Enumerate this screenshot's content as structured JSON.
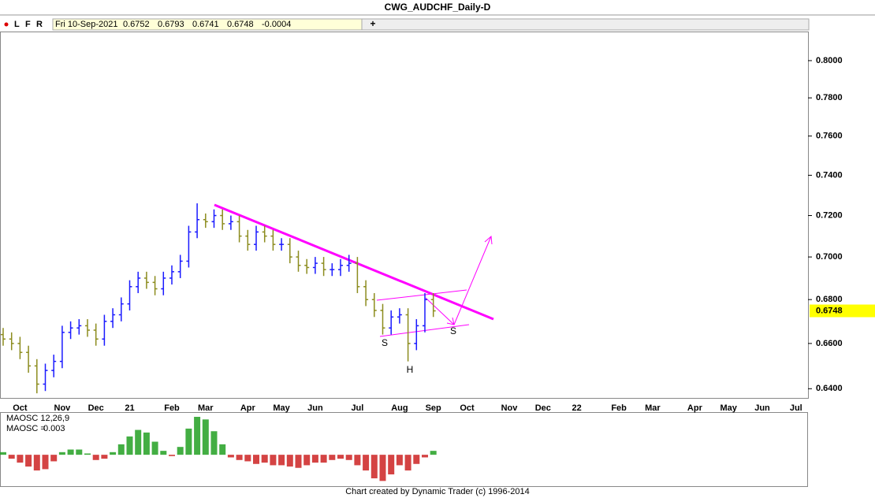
{
  "chart_data": {
    "type": "ohlc",
    "title": "CWG_AUDCHF_Daily-D",
    "toolbar": {
      "buttons": [
        "L",
        "F",
        "R"
      ],
      "date": "Fri 10-Sep-2021",
      "open": 0.6752,
      "high": 0.6793,
      "low": 0.6741,
      "close": 0.6748,
      "change": -0.0004
    },
    "categories": [
      null,
      null,
      "Oct",
      null,
      null,
      null,
      null,
      "Nov",
      null,
      null,
      null,
      "Dec",
      null,
      null,
      null,
      "21",
      null,
      null,
      null,
      null,
      "Feb",
      null,
      null,
      null,
      "Mar",
      null,
      null,
      null,
      null,
      "Apr",
      null,
      null,
      null,
      "May",
      null,
      null,
      null,
      "Jun",
      null,
      null,
      null,
      null,
      "Jul",
      null,
      null,
      null,
      null,
      "Aug",
      null,
      null,
      null,
      "Sep",
      null,
      null,
      null,
      "Oct",
      null,
      null,
      null,
      null,
      "Nov",
      null,
      null,
      null,
      "Dec",
      null,
      null,
      null,
      "22",
      null,
      null,
      null,
      null,
      "Feb",
      null,
      null,
      null,
      "Mar",
      null,
      null,
      null,
      null,
      "Apr",
      null,
      null,
      null,
      "May",
      null,
      null,
      null,
      "Jun",
      null,
      null,
      null,
      "Jul",
      null
    ],
    "open": [
      0.664,
      0.662,
      0.66,
      0.656,
      0.65,
      0.642,
      0.648,
      0.652,
      0.665,
      0.667,
      0.668,
      0.666,
      0.662,
      0.67,
      0.673,
      0.678,
      0.686,
      0.69,
      0.688,
      0.685,
      0.69,
      0.693,
      0.698,
      0.712,
      0.718,
      0.717,
      0.72,
      0.716,
      0.717,
      0.71,
      0.706,
      0.712,
      0.71,
      0.706,
      0.706,
      0.7,
      0.696,
      0.695,
      0.697,
      0.694,
      0.694,
      0.696,
      0.697,
      0.686,
      0.68,
      0.675,
      0.667,
      0.672,
      0.673,
      0.66,
      0.668,
      0.68,
      null,
      null,
      null,
      null,
      null,
      null,
      null,
      null,
      null,
      null,
      null,
      null,
      null,
      null,
      null,
      null,
      null,
      null,
      null,
      null,
      null,
      null,
      null,
      null,
      null,
      null,
      null,
      null,
      null,
      null,
      null,
      null,
      null,
      null,
      null,
      null,
      null,
      null,
      null,
      null,
      null,
      null,
      null,
      null
    ],
    "high": [
      0.667,
      0.665,
      0.663,
      0.659,
      0.653,
      0.651,
      0.655,
      0.668,
      0.67,
      0.671,
      0.671,
      0.669,
      0.673,
      0.676,
      0.681,
      0.689,
      0.693,
      0.693,
      0.691,
      0.693,
      0.696,
      0.701,
      0.715,
      0.726,
      0.721,
      0.723,
      0.723,
      0.72,
      0.72,
      0.713,
      0.715,
      0.715,
      0.713,
      0.709,
      0.709,
      0.703,
      0.699,
      0.7,
      0.7,
      0.697,
      0.699,
      0.701,
      0.7,
      0.689,
      0.683,
      0.678,
      0.675,
      0.676,
      0.676,
      0.671,
      0.683,
      0.683,
      null,
      null,
      null,
      null,
      null,
      null,
      null,
      null,
      null,
      null,
      null,
      null,
      null,
      null,
      null,
      null,
      null,
      null,
      null,
      null,
      null,
      null,
      null,
      null,
      null,
      null,
      null,
      null,
      null,
      null,
      null,
      null,
      null,
      null,
      null,
      null,
      null,
      null,
      null,
      null,
      null,
      null,
      null,
      null
    ],
    "low": [
      0.659,
      0.657,
      0.653,
      0.647,
      0.638,
      0.639,
      0.645,
      0.649,
      0.662,
      0.664,
      0.663,
      0.659,
      0.659,
      0.667,
      0.67,
      0.675,
      0.683,
      0.685,
      0.682,
      0.682,
      0.687,
      0.69,
      0.695,
      0.709,
      0.714,
      0.714,
      0.713,
      0.713,
      0.707,
      0.703,
      0.703,
      0.707,
      0.703,
      0.703,
      0.697,
      0.693,
      0.692,
      0.692,
      0.691,
      0.691,
      0.691,
      0.693,
      0.683,
      0.677,
      0.672,
      0.664,
      0.664,
      0.669,
      0.652,
      0.657,
      0.665,
      0.672,
      null,
      null,
      null,
      null,
      null,
      null,
      null,
      null,
      null,
      null,
      null,
      null,
      null,
      null,
      null,
      null,
      null,
      null,
      null,
      null,
      null,
      null,
      null,
      null,
      null,
      null,
      null,
      null,
      null,
      null,
      null,
      null,
      null,
      null,
      null,
      null,
      null,
      null,
      null,
      null,
      null,
      null,
      null,
      null
    ],
    "close": [
      0.662,
      0.66,
      0.656,
      0.65,
      0.642,
      0.648,
      0.652,
      0.665,
      0.667,
      0.668,
      0.666,
      0.662,
      0.67,
      0.673,
      0.678,
      0.686,
      0.69,
      0.688,
      0.685,
      0.69,
      0.693,
      0.698,
      0.712,
      0.718,
      0.717,
      0.72,
      0.716,
      0.717,
      0.71,
      0.706,
      0.712,
      0.71,
      0.706,
      0.706,
      0.7,
      0.696,
      0.695,
      0.697,
      0.694,
      0.694,
      0.696,
      0.697,
      0.686,
      0.68,
      0.675,
      0.667,
      0.672,
      0.673,
      0.66,
      0.668,
      0.68,
      0.6748,
      null,
      null,
      null,
      null,
      null,
      null,
      null,
      null,
      null,
      null,
      null,
      null,
      null,
      null,
      null,
      null,
      null,
      null,
      null,
      null,
      null,
      null,
      null,
      null,
      null,
      null,
      null,
      null,
      null,
      null,
      null,
      null,
      null,
      null,
      null,
      null,
      null,
      null,
      null,
      null,
      null,
      null,
      null,
      null
    ],
    "up_color": "#1a1aff",
    "down_color": "#8c8c1e",
    "log_scale": true,
    "ylim": [
      0.636,
      0.816
    ],
    "yticks": [
      {
        "value": 0.64,
        "label": "0.6400"
      },
      {
        "value": 0.66,
        "label": "0.6600"
      },
      {
        "value": 0.68,
        "label": "0.6800"
      },
      {
        "value": 0.7,
        "label": "0.7000"
      },
      {
        "value": 0.72,
        "label": "0.7200"
      },
      {
        "value": 0.74,
        "label": "0.7400"
      },
      {
        "value": 0.76,
        "label": "0.7600"
      },
      {
        "value": 0.78,
        "label": "0.7800"
      },
      {
        "value": 0.8,
        "label": "0.8000"
      }
    ],
    "last_price": 0.6748,
    "annotations": [
      "S",
      "H",
      "S"
    ],
    "oscillator": {
      "label": "MAOSC 12,26,9",
      "value_text": "MAOSC =",
      "current": 0.003,
      "ylim": [
        -0.024,
        0.032
      ],
      "up_color": "#22a022",
      "down_color": "#cc2222",
      "values": [
        0.002,
        -0.003,
        -0.006,
        -0.009,
        -0.012,
        -0.011,
        -0.005,
        0.002,
        0.004,
        0.004,
        0.001,
        -0.004,
        -0.003,
        0.002,
        0.008,
        0.014,
        0.019,
        0.017,
        0.01,
        0.003,
        -0.001,
        0.006,
        0.02,
        0.029,
        0.027,
        0.018,
        0.008,
        -0.002,
        -0.004,
        -0.005,
        -0.007,
        -0.006,
        -0.008,
        -0.008,
        -0.009,
        -0.01,
        -0.008,
        -0.006,
        -0.006,
        -0.004,
        -0.003,
        -0.004,
        -0.008,
        -0.012,
        -0.018,
        -0.02,
        -0.015,
        -0.008,
        -0.012,
        -0.007,
        -0.002,
        0.003,
        null,
        null,
        null,
        null,
        null,
        null,
        null,
        null,
        null,
        null,
        null,
        null,
        null,
        null,
        null,
        null,
        null,
        null,
        null,
        null,
        null,
        null,
        null,
        null,
        null,
        null,
        null,
        null,
        null,
        null,
        null,
        null,
        null,
        null,
        null,
        null,
        null,
        null,
        null,
        null,
        null,
        null,
        null,
        null
      ]
    },
    "footer": "Chart created by Dynamic Trader  (c) 1996-2014"
  }
}
